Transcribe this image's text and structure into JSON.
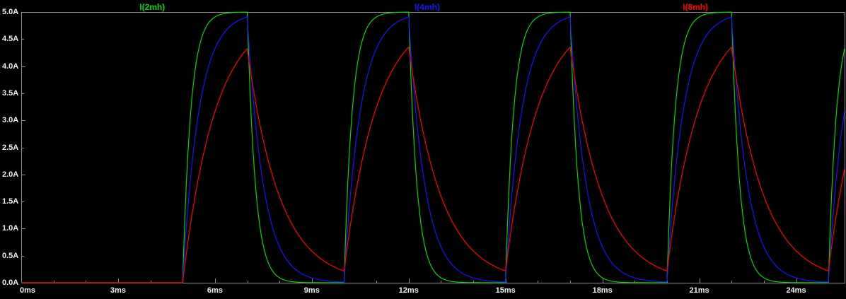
{
  "chart_data": {
    "type": "line",
    "title": "",
    "background": "#000000",
    "axis_color": "#8c8c8c",
    "text_color": "#f0f0f0",
    "grid": false,
    "legend_position": "top",
    "x_axis": {
      "unit": "ms",
      "min": 0,
      "max": 25.5,
      "tick_step": 3,
      "tick_labels": [
        "0ms",
        "3ms",
        "6ms",
        "9ms",
        "12ms",
        "15ms",
        "18ms",
        "21ms",
        "24ms"
      ]
    },
    "y_axis": {
      "unit": "A",
      "min": 0,
      "max": 5,
      "tick_step": 0.5,
      "tick_labels": [
        "5.0A",
        "4.5A",
        "4.0A",
        "3.5A",
        "3.0A",
        "2.5A",
        "2.0A",
        "1.5A",
        "1.0A",
        "0.5A",
        "0.0A"
      ]
    },
    "series": [
      {
        "name": "I(2mh)",
        "color": "#00d800",
        "tau_ms": 0.25,
        "peak_A": 5.0
      },
      {
        "name": "I(4mh)",
        "color": "#1414ff",
        "tau_ms": 0.5,
        "peak_A": 4.91
      },
      {
        "name": "I(8mh)",
        "color": "#ff0000",
        "tau_ms": 1.0,
        "peak_A": 4.35
      }
    ],
    "excitation": {
      "amplitude_A": 5,
      "delay_ms": 5,
      "on_ms": 2,
      "period_ms": 5,
      "cycles_visible": 4
    }
  }
}
